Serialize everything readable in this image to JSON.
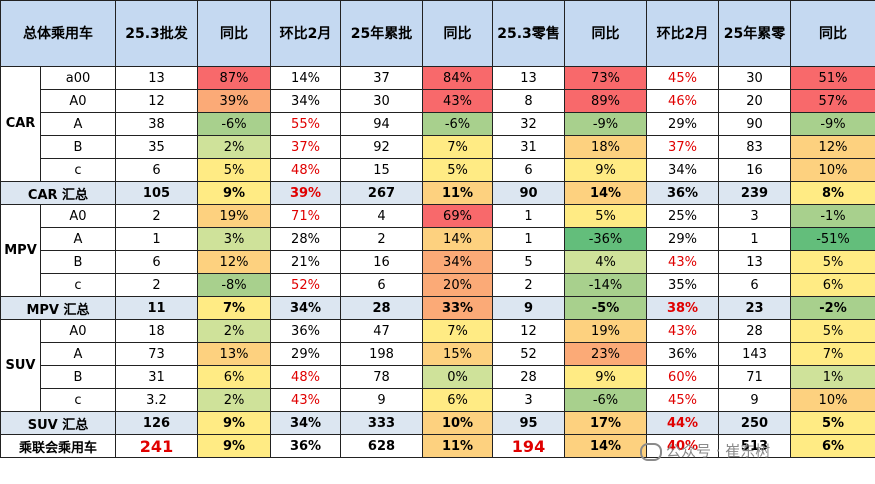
{
  "headers": [
    "总体乘用车",
    "25.3批发",
    "同比",
    "环比2月",
    "25年累批",
    "同比",
    "25.3零售",
    "同比",
    "环比2月",
    "25年累零",
    "同比"
  ],
  "groups": [
    {
      "label": "CAR",
      "rows": [
        {
          "seg": "a00",
          "c": [
            "13",
            "87%",
            "14%",
            "37",
            "84%",
            "13",
            "73%",
            "45%",
            "30",
            "51%"
          ]
        },
        {
          "seg": "A0",
          "c": [
            "12",
            "39%",
            "34%",
            "30",
            "43%",
            "8",
            "89%",
            "46%",
            "20",
            "57%"
          ]
        },
        {
          "seg": "A",
          "c": [
            "38",
            "-6%",
            "55%",
            "94",
            "-6%",
            "32",
            "-9%",
            "29%",
            "90",
            "-9%"
          ]
        },
        {
          "seg": "B",
          "c": [
            "35",
            "2%",
            "37%",
            "92",
            "7%",
            "31",
            "18%",
            "37%",
            "83",
            "12%"
          ]
        },
        {
          "seg": "c",
          "c": [
            "6",
            "5%",
            "48%",
            "15",
            "5%",
            "6",
            "9%",
            "34%",
            "16",
            "10%"
          ]
        }
      ],
      "sum": {
        "label": "CAR 汇总",
        "c": [
          "105",
          "9%",
          "39%",
          "267",
          "11%",
          "90",
          "14%",
          "36%",
          "239",
          "8%"
        ]
      }
    },
    {
      "label": "MPV",
      "rows": [
        {
          "seg": "A0",
          "c": [
            "2",
            "19%",
            "71%",
            "4",
            "69%",
            "1",
            "5%",
            "25%",
            "3",
            "-1%"
          ]
        },
        {
          "seg": "A",
          "c": [
            "1",
            "3%",
            "28%",
            "2",
            "14%",
            "1",
            "-36%",
            "29%",
            "1",
            "-51%"
          ]
        },
        {
          "seg": "B",
          "c": [
            "6",
            "12%",
            "21%",
            "16",
            "34%",
            "5",
            "4%",
            "43%",
            "13",
            "5%"
          ]
        },
        {
          "seg": "c",
          "c": [
            "2",
            "-8%",
            "52%",
            "6",
            "20%",
            "2",
            "-14%",
            "35%",
            "6",
            "6%"
          ]
        }
      ],
      "sum": {
        "label": "MPV 汇总",
        "c": [
          "11",
          "7%",
          "34%",
          "28",
          "33%",
          "9",
          "-5%",
          "38%",
          "23",
          "-2%"
        ]
      }
    },
    {
      "label": "SUV",
      "rows": [
        {
          "seg": "A0",
          "c": [
            "18",
            "2%",
            "36%",
            "47",
            "7%",
            "12",
            "19%",
            "43%",
            "28",
            "5%"
          ]
        },
        {
          "seg": "A",
          "c": [
            "73",
            "13%",
            "29%",
            "198",
            "15%",
            "52",
            "23%",
            "36%",
            "143",
            "7%"
          ]
        },
        {
          "seg": "B",
          "c": [
            "31",
            "6%",
            "48%",
            "78",
            "0%",
            "28",
            "9%",
            "60%",
            "71",
            "1%"
          ]
        },
        {
          "seg": "c",
          "c": [
            "3.2",
            "2%",
            "43%",
            "9",
            "6%",
            "3",
            "-6%",
            "45%",
            "9",
            "10%"
          ]
        }
      ],
      "sum": {
        "label": "SUV 汇总",
        "c": [
          "126",
          "9%",
          "34%",
          "333",
          "10%",
          "95",
          "17%",
          "44%",
          "250",
          "5%"
        ]
      }
    }
  ],
  "total": {
    "label": "乘联会乘用车",
    "c": [
      "241",
      "9%",
      "36%",
      "628",
      "11%",
      "194",
      "14%",
      "40%",
      "513",
      "6%"
    ]
  },
  "watermark": "公众号 · 崔东树",
  "colors": {
    "header_bg": "#c5d9f1",
    "summary_bg": "#dce6f1",
    "red_text": "#e00000",
    "scale": [
      "#63be7b",
      "#a8d08d",
      "#cfe29a",
      "#ffeb84",
      "#fdd17f",
      "#fbaa77",
      "#f8696b"
    ]
  }
}
